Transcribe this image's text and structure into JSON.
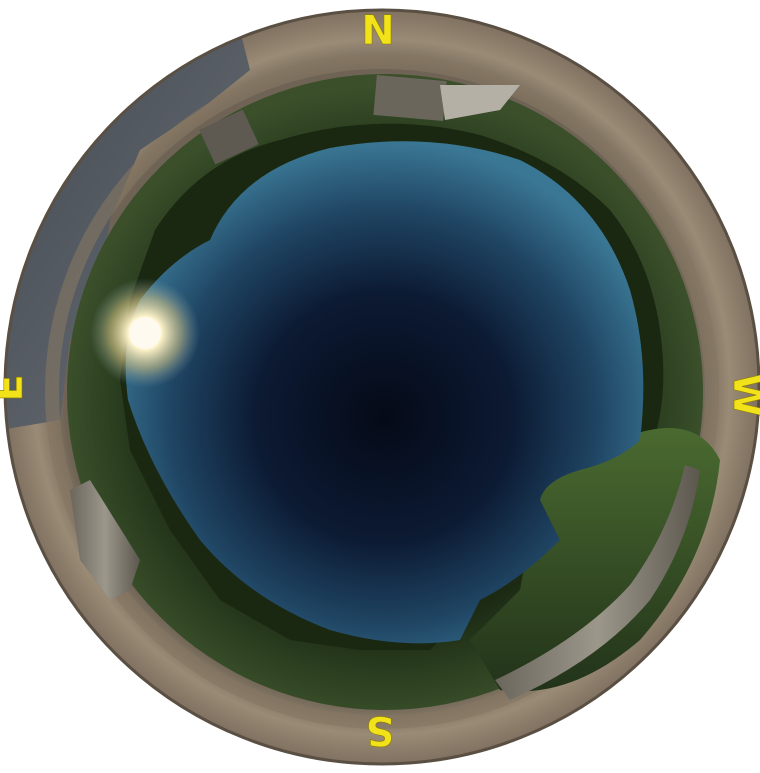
{
  "compass": {
    "north": "N",
    "south": "S",
    "east": "E",
    "west": "W"
  },
  "colors": {
    "letter": "#f2e21a",
    "sky_center": "#060d1c",
    "sky_edge": "#2f6a86",
    "ground_ring": "#8a7a66",
    "vegetation": "#2a3a1c",
    "rock": "#5a5e63",
    "sun": "#fff6d8"
  }
}
